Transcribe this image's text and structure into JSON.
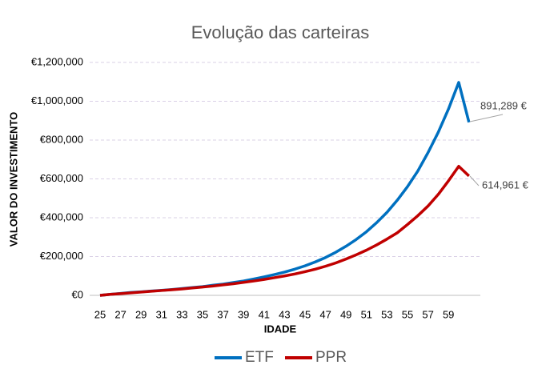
{
  "chart_data": {
    "type": "line",
    "title": "Evolução das carteiras",
    "x_label": "IDADE",
    "y_label": "VALOR DO INVESTIMENTO",
    "categories": [
      25,
      null,
      27,
      null,
      29,
      null,
      31,
      null,
      33,
      null,
      35,
      null,
      37,
      null,
      39,
      null,
      41,
      null,
      43,
      null,
      45,
      null,
      47,
      null,
      49,
      null,
      51,
      null,
      53,
      null,
      55,
      null,
      57,
      null,
      59,
      null,
      null
    ],
    "series": [
      {
        "name": "ETF",
        "color": "#0070c0",
        "values": [
          0,
          5000,
          10000,
          15000,
          18000,
          22000,
          26000,
          30000,
          35000,
          40000,
          45000,
          52000,
          58000,
          66000,
          74000,
          84000,
          95000,
          107000,
          120000,
          135000,
          152000,
          172000,
          195000,
          222000,
          253000,
          288000,
          328000,
          375000,
          428000,
          490000,
          560000,
          640000,
          735000,
          840000,
          960000,
          1097000,
          891289
        ],
        "value_labels": [
          null,
          null,
          null,
          null,
          null,
          null,
          null,
          null,
          null,
          null,
          null,
          null,
          null,
          null,
          null,
          null,
          null,
          null,
          null,
          null,
          null,
          null,
          null,
          null,
          null,
          null,
          null,
          null,
          null,
          null,
          null,
          null,
          null,
          null,
          null,
          null,
          "891,289 €"
        ]
      },
      {
        "name": "PPR",
        "color": "#c00000",
        "values": [
          0,
          5000,
          9000,
          13000,
          17000,
          21000,
          25000,
          29000,
          33000,
          38000,
          43000,
          48000,
          54000,
          60000,
          67000,
          74000,
          82000,
          91000,
          100000,
          110000,
          122000,
          135000,
          150000,
          167000,
          187000,
          209000,
          233000,
          260000,
          290000,
          322000,
          365000,
          410000,
          460000,
          520000,
          590000,
          665000,
          614961
        ],
        "value_labels": [
          null,
          null,
          null,
          null,
          null,
          null,
          null,
          null,
          null,
          null,
          null,
          null,
          null,
          null,
          null,
          null,
          null,
          null,
          null,
          null,
          null,
          null,
          null,
          null,
          null,
          null,
          null,
          null,
          null,
          null,
          null,
          null,
          null,
          null,
          null,
          null,
          "614,961 €"
        ]
      }
    ],
    "ylim": [
      0,
      1200000
    ],
    "yticks": [
      {
        "value": 0,
        "label": "€0"
      },
      {
        "value": 200000,
        "label": "€200,000"
      },
      {
        "value": 400000,
        "label": "€400,000"
      },
      {
        "value": 600000,
        "label": "€600,000"
      },
      {
        "value": 800000,
        "label": "€800,000"
      },
      {
        "value": 1000000,
        "label": "€1,000,000"
      },
      {
        "value": 1200000,
        "label": "€1,200,000"
      }
    ],
    "grid": true,
    "legend": "bottom"
  }
}
